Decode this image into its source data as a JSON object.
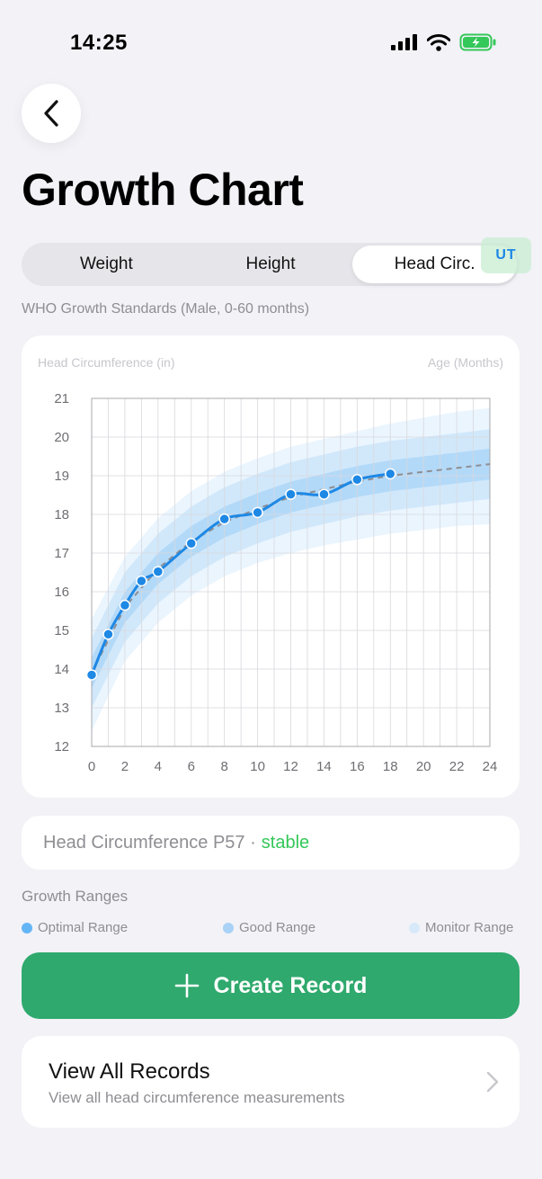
{
  "status_bar": {
    "time": "14:25"
  },
  "header": {
    "title": "Growth Chart"
  },
  "tabs": [
    {
      "label": "Weight",
      "active": false
    },
    {
      "label": "Height",
      "active": false
    },
    {
      "label": "Head Circ.",
      "active": true
    }
  ],
  "unit_badge": "UT",
  "subtitle": "WHO Growth Standards (Male, 0-60 months)",
  "chart_data": {
    "type": "line",
    "ylabel": "Head Circumference (in)",
    "xlabel": "Age (Months)",
    "xlim": [
      0,
      24
    ],
    "ylim": [
      12,
      21
    ],
    "x_ticks": [
      "0",
      "2",
      "4",
      "6",
      "8",
      "10",
      "12",
      "14",
      "16",
      "18",
      "20",
      "22",
      "24"
    ],
    "y_ticks": [
      "21",
      "20",
      "19",
      "18",
      "17",
      "16",
      "15",
      "14",
      "13",
      "12"
    ],
    "grid": true,
    "series": [
      {
        "style": "solid-with-markers",
        "color": "#1E88E5",
        "x": [
          0,
          1,
          2,
          3,
          4,
          6,
          8,
          10,
          12,
          14,
          16,
          18
        ],
        "y": [
          13.85,
          14.9,
          15.65,
          16.28,
          16.52,
          17.25,
          17.88,
          18.05,
          18.52,
          18.52,
          18.9,
          19.05
        ]
      },
      {
        "style": "dashed-median",
        "color": "#8E8E93",
        "x": [
          0,
          2,
          4,
          6,
          8,
          10,
          12,
          14,
          16,
          18,
          20,
          22,
          24
        ],
        "y": [
          13.9,
          15.6,
          16.6,
          17.3,
          17.8,
          18.15,
          18.45,
          18.65,
          18.85,
          19.0,
          19.1,
          19.2,
          19.3
        ]
      }
    ],
    "bands": [
      {
        "range": "monitor",
        "color": "#E3F2FD",
        "x": [
          0,
          2,
          4,
          6,
          8,
          10,
          12,
          14,
          16,
          18,
          20,
          22,
          24
        ],
        "lower": [
          12.4,
          14.2,
          15.2,
          15.9,
          16.4,
          16.75,
          17.0,
          17.2,
          17.35,
          17.5,
          17.6,
          17.7,
          17.75
        ],
        "upper": [
          15.3,
          16.9,
          17.9,
          18.6,
          19.1,
          19.45,
          19.75,
          19.95,
          20.15,
          20.35,
          20.5,
          20.65,
          20.75
        ]
      },
      {
        "range": "good",
        "color": "#C8E3FA",
        "x": [
          0,
          2,
          4,
          6,
          8,
          10,
          12,
          14,
          16,
          18,
          20,
          22,
          24
        ],
        "lower": [
          13.0,
          14.7,
          15.7,
          16.4,
          16.9,
          17.25,
          17.55,
          17.75,
          17.95,
          18.1,
          18.2,
          18.3,
          18.4
        ],
        "upper": [
          14.8,
          16.5,
          17.5,
          18.2,
          18.7,
          19.05,
          19.35,
          19.55,
          19.75,
          19.9,
          20.0,
          20.1,
          20.2
        ]
      },
      {
        "range": "optimal",
        "color": "#A8D4F7",
        "x": [
          0,
          2,
          4,
          6,
          8,
          10,
          12,
          14,
          16,
          18,
          20,
          22,
          24
        ],
        "lower": [
          13.5,
          15.2,
          16.2,
          16.9,
          17.4,
          17.75,
          18.05,
          18.25,
          18.45,
          18.6,
          18.7,
          18.8,
          18.9
        ],
        "upper": [
          14.3,
          16.0,
          17.0,
          17.7,
          18.2,
          18.55,
          18.85,
          19.05,
          19.25,
          19.4,
          19.5,
          19.6,
          19.7
        ]
      }
    ]
  },
  "status_card": {
    "label": "Head Circumference P57 ·",
    "trend": "stable"
  },
  "ranges": {
    "title": "Growth Ranges",
    "items": [
      {
        "label": "Optimal Range",
        "color": "#64B5F6"
      },
      {
        "label": "Good Range",
        "color": "#A9D2F6"
      },
      {
        "label": "Monitor Range",
        "color": "#D8EAFA"
      }
    ]
  },
  "create_button": {
    "label": "Create Record"
  },
  "records": {
    "title": "View All Records",
    "subtitle": "View all head circumference measurements"
  },
  "icons": [
    "back-chevron-icon",
    "plus-icon",
    "chevron-right-icon",
    "signal-icon",
    "wifi-icon",
    "battery-icon"
  ]
}
